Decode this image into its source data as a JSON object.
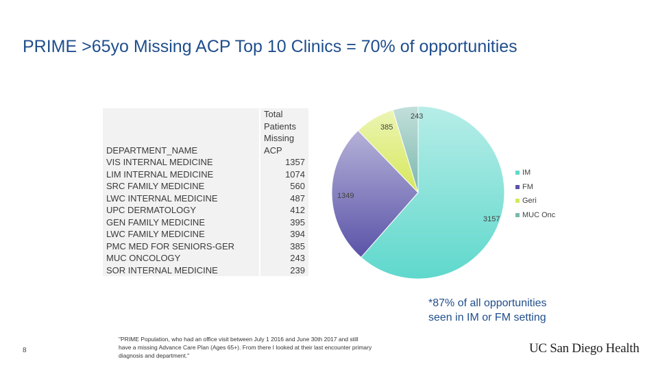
{
  "slide": {
    "title": "PRIME >65yo Missing ACP Top 10 Clinics = 70% of opportunities",
    "page_number": "8",
    "note_line1": "*87% of all opportunities",
    "note_line2": "seen in IM or FM setting",
    "footnote": "\"PRIME Population, who had an office visit between July 1 2016 and June 30th 2017 and still have a missing Advance Care Plan (Ages 65+). From there I looked at their last encounter primary diagnosis and department.\"",
    "logo": "UC San Diego Health"
  },
  "table": {
    "header_dept": "DEPARTMENT_NAME",
    "header_total": [
      "Total",
      "Patients",
      "Missing",
      "ACP"
    ],
    "rows": [
      {
        "dept": "VIS INTERNAL MEDICINE",
        "value": "1357"
      },
      {
        "dept": "LIM INTERNAL MEDICINE",
        "value": "1074"
      },
      {
        "dept": "SRC FAMILY MEDICINE",
        "value": "560"
      },
      {
        "dept": "LWC INTERNAL MEDICINE",
        "value": "487"
      },
      {
        "dept": "UPC DERMATOLOGY",
        "value": "412"
      },
      {
        "dept": "GEN FAMILY MEDICINE",
        "value": "395"
      },
      {
        "dept": "LWC FAMILY MEDICINE",
        "value": "394"
      },
      {
        "dept": "PMC MED FOR SENIORS-GER",
        "value": "385"
      },
      {
        "dept": "MUC ONCOLOGY",
        "value": "243"
      },
      {
        "dept": "SOR INTERNAL MEDICINE",
        "value": "239"
      }
    ]
  },
  "chart_data": {
    "type": "pie",
    "title": "",
    "legend_position": "right",
    "slices": [
      {
        "name": "IM",
        "value": 3157,
        "color": "#5fd8cc"
      },
      {
        "name": "FM",
        "value": 1349,
        "color": "#5a53a8"
      },
      {
        "name": "Geri",
        "value": 385,
        "color": "#d6e85a"
      },
      {
        "name": "MUC Onc",
        "value": 243,
        "color": "#7ab8ae"
      }
    ]
  }
}
